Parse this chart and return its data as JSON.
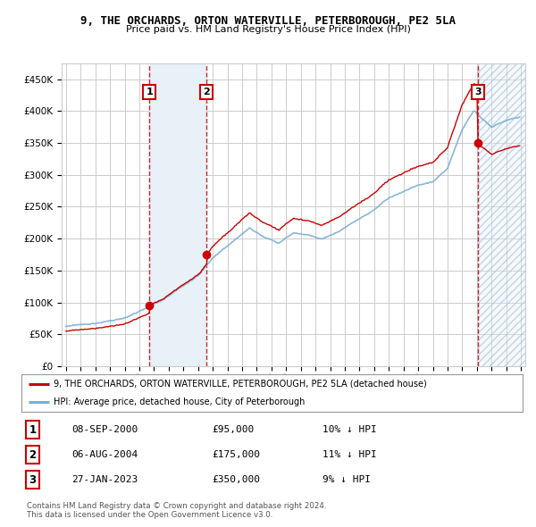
{
  "title": "9, THE ORCHARDS, ORTON WATERVILLE, PETERBOROUGH, PE2 5LA",
  "subtitle": "Price paid vs. HM Land Registry's House Price Index (HPI)",
  "xlim_start": 1994.7,
  "xlim_end": 2026.3,
  "ylim": [
    0,
    475000
  ],
  "yticks": [
    0,
    50000,
    100000,
    150000,
    200000,
    250000,
    300000,
    350000,
    400000,
    450000
  ],
  "ytick_labels": [
    "£0",
    "£50K",
    "£100K",
    "£150K",
    "£200K",
    "£250K",
    "£300K",
    "£350K",
    "£400K",
    "£450K"
  ],
  "xticks": [
    1995,
    1996,
    1997,
    1998,
    1999,
    2000,
    2001,
    2002,
    2003,
    2004,
    2005,
    2006,
    2007,
    2008,
    2009,
    2010,
    2011,
    2012,
    2013,
    2014,
    2015,
    2016,
    2017,
    2018,
    2019,
    2020,
    2021,
    2022,
    2023,
    2024,
    2025,
    2026
  ],
  "sale_dates": [
    2000.686,
    2004.589,
    2023.074
  ],
  "sale_prices": [
    95000,
    175000,
    350000
  ],
  "sale_labels": [
    "1",
    "2",
    "3"
  ],
  "shade_between_sales": [
    2000.686,
    2004.589
  ],
  "hatch_after": 2023.074,
  "legend_entries": [
    "9, THE ORCHARDS, ORTON WATERVILLE, PETERBOROUGH, PE2 5LA (detached house)",
    "HPI: Average price, detached house, City of Peterborough"
  ],
  "table_rows": [
    {
      "num": "1",
      "date": "08-SEP-2000",
      "price": "£95,000",
      "hpi": "10% ↓ HPI"
    },
    {
      "num": "2",
      "date": "06-AUG-2004",
      "price": "£175,000",
      "hpi": "11% ↓ HPI"
    },
    {
      "num": "3",
      "date": "27-JAN-2023",
      "price": "£350,000",
      "hpi": "9% ↓ HPI"
    }
  ],
  "footnote1": "Contains HM Land Registry data © Crown copyright and database right 2024.",
  "footnote2": "This data is licensed under the Open Government Licence v3.0.",
  "line_color_red": "#cc0000",
  "line_color_blue": "#7bafd4",
  "grid_color": "#cccccc",
  "bg_color": "#ffffff",
  "sale_box_color": "#cc0000",
  "shade_color_blue": "#ddeeff"
}
